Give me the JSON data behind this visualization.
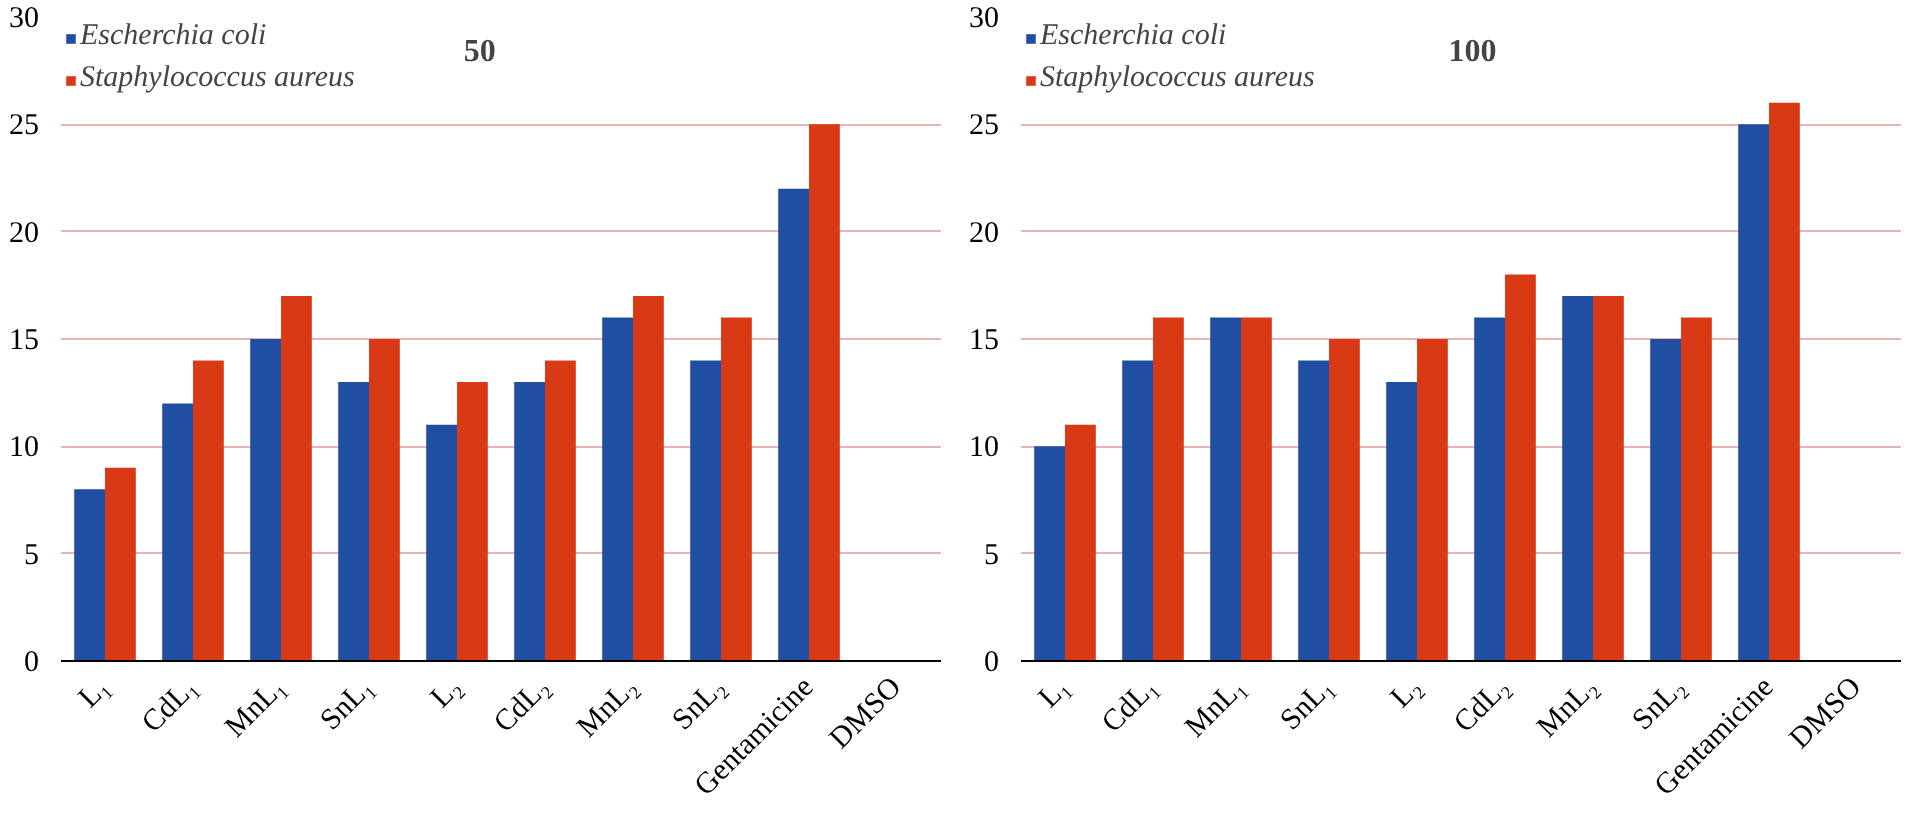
{
  "chart_data": [
    {
      "type": "bar",
      "title": "50",
      "categories": [
        "L₁",
        "CdL₁",
        "MnL₁",
        "SnL₁",
        "L₂",
        "CdL₂",
        "MnL₂",
        "SnL₂",
        "Gentamicine",
        "DMSO"
      ],
      "series": [
        {
          "name": "Escherchia coli",
          "color": "#1f4ea3",
          "values": [
            8,
            12,
            15,
            13,
            11,
            13,
            16,
            14,
            22,
            0
          ]
        },
        {
          "name": "Staphylococcus aureus",
          "color": "#d93a16",
          "values": [
            9,
            14,
            17,
            15,
            13,
            14,
            17,
            16,
            25,
            0
          ]
        }
      ],
      "ylim": [
        0,
        30
      ],
      "yticks": [
        0,
        5,
        10,
        15,
        20,
        25,
        30
      ],
      "grid": "y",
      "legend": "top left"
    },
    {
      "type": "bar",
      "title": "100",
      "categories": [
        "L₁",
        "CdL₁",
        "MnL₁",
        "SnL₁",
        "L₂",
        "CdL₂",
        "MnL₂",
        "SnL₂",
        "Gentamicine",
        "DMSO"
      ],
      "series": [
        {
          "name": "Escherchia coli",
          "color": "#1f4ea3",
          "values": [
            10,
            14,
            16,
            14,
            13,
            16,
            17,
            15,
            25,
            0
          ]
        },
        {
          "name": "Staphylococcus aureus",
          "color": "#d93a16",
          "values": [
            11,
            16,
            16,
            15,
            15,
            18,
            17,
            16,
            26,
            0
          ]
        }
      ],
      "ylim": [
        0,
        30
      ],
      "yticks": [
        0,
        5,
        10,
        15,
        20,
        25,
        30
      ],
      "grid": "y",
      "legend": "top left"
    }
  ]
}
